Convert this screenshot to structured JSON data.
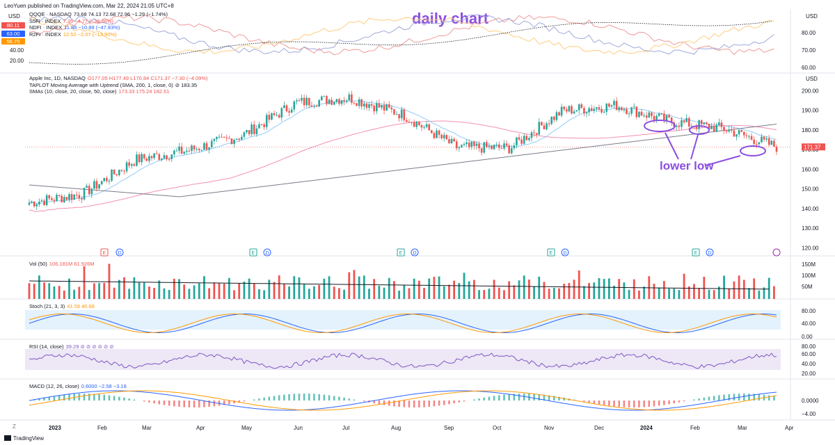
{
  "header": {
    "text": "LeoYuen published on TradingView.com, Mar 22, 2024 21:05 UTC+8"
  },
  "annotations": {
    "title": "daily chart",
    "lower_low": "lower low"
  },
  "footer": {
    "brand": "TradingView",
    "zoom": "Z"
  },
  "colors": {
    "up": "#26a69a",
    "down": "#ef5350",
    "accent": "#8b4fe0"
  },
  "chart_data": [
    {
      "panel": "breadth",
      "type": "line",
      "usd": "USD",
      "legend": [
        {
          "name": "QQQE · NASDAQ",
          "values": "73.68  74.13  72.68  72.96  −1.29 (−1.74%)",
          "color": "#131722"
        },
        {
          "name": "S5FI · INDEX",
          "values": "7.35  −4.77 (−39.36%)",
          "color": "#ef5350"
        },
        {
          "name": "NDFI · INDEX",
          "values": "11.88  −10.89 (−47.83%)",
          "color": "#2962ff"
        },
        {
          "name": "R2FI · INDEX",
          "values": "12.52  −2.07 (−13.90%)",
          "color": "#ff9800"
        }
      ],
      "left_badges": [
        {
          "label": "80.11",
          "color": "#ef5350"
        },
        {
          "label": "63.00",
          "color": "#2962ff"
        },
        {
          "label": "56.70",
          "color": "#ff9800"
        }
      ],
      "left_ticks": [
        "40.00",
        "20.00"
      ],
      "yticks": [
        "80.00",
        "70.00",
        "60.00"
      ]
    },
    {
      "panel": "price",
      "type": "candlestick",
      "usd": "USD",
      "legend": [
        {
          "name": "Apple Inc, 1D, NASDAQ",
          "values": "O177.05  H177.49  L170.84  C171.37  −7.30 (−4.09%)",
          "color": "#ef5350"
        },
        {
          "name": "TAPLOT Moving Average with Uptrend (SMA, 200, 1, close, 0)",
          "values": "⊘  183.35",
          "color": "#131722"
        },
        {
          "name": "SMAs (10, close, 20, close, 50, close)",
          "values": "173.33  175.24  182.51",
          "color": "#ef5350"
        }
      ],
      "last_price": "171.37",
      "yticks": [
        "200.00",
        "190.00",
        "180.00",
        "170.00",
        "160.00",
        "150.00",
        "140.00",
        "130.00",
        "120.00"
      ],
      "ylim": [
        118,
        203
      ],
      "monthly_close": [
        {
          "m": "Jan 2023",
          "v": 143.0
        },
        {
          "m": "Feb",
          "v": 147.4
        },
        {
          "m": "Mar",
          "v": 164.9
        },
        {
          "m": "Apr",
          "v": 169.7
        },
        {
          "m": "May",
          "v": 177.3
        },
        {
          "m": "Jun",
          "v": 193.9
        },
        {
          "m": "Jul",
          "v": 196.4
        },
        {
          "m": "Aug",
          "v": 187.9
        },
        {
          "m": "Sep",
          "v": 171.2
        },
        {
          "m": "Oct",
          "v": 170.8
        },
        {
          "m": "Nov",
          "v": 189.9
        },
        {
          "m": "Dec",
          "v": 192.5
        },
        {
          "m": "Jan 2024",
          "v": 184.4
        },
        {
          "m": "Feb",
          "v": 180.8
        },
        {
          "m": "Mar",
          "v": 171.4
        }
      ],
      "event_markers": [
        "E",
        "D",
        "E",
        "D",
        "E",
        "D",
        "E",
        "D",
        "E",
        "D"
      ]
    },
    {
      "panel": "volume",
      "type": "bar",
      "legend": [
        {
          "name": "Vol (50)",
          "values": "106.181M  61.926M",
          "color": "#131722"
        }
      ],
      "yticks": [
        "150M",
        "100M",
        "50M"
      ]
    },
    {
      "panel": "stoch",
      "type": "line",
      "legend": [
        {
          "name": "Stoch (21, 3, 3)",
          "values": "41.59  40.68",
          "color": "#131722"
        }
      ],
      "yticks": [
        "80.00",
        "40.00",
        "0.00"
      ],
      "ylim": [
        0,
        100
      ]
    },
    {
      "panel": "rsi",
      "type": "line",
      "legend": [
        {
          "name": "RSI (14, close)",
          "values": "39.29  ⊘ ⊘ ⊘ ⊘ ⊘ ⊘",
          "color": "#131722"
        }
      ],
      "yticks": [
        "80.00",
        "60.00",
        "40.00",
        "20.00"
      ],
      "ylim": [
        20,
        80
      ]
    },
    {
      "panel": "macd",
      "type": "bar",
      "legend": [
        {
          "name": "MACD (12, 26, close)",
          "values": "0.6000  −2.58  −3.18",
          "color": "#131722"
        }
      ],
      "yticks": [
        "0.0000",
        "−4.00"
      ]
    }
  ],
  "x_axis": {
    "labels": [
      "2023",
      "Feb",
      "Mar",
      "Apr",
      "May",
      "Jun",
      "Jul",
      "Aug",
      "Sep",
      "Oct",
      "Nov",
      "Dec",
      "2024",
      "Feb",
      "Mar",
      "Apr"
    ]
  }
}
